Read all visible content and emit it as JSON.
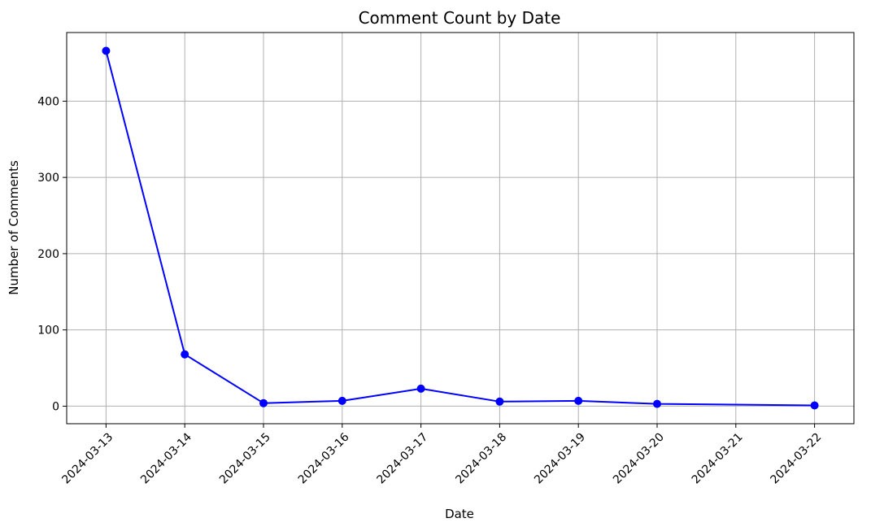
{
  "chart_data": {
    "type": "line",
    "title": "Comment Count by Date",
    "xlabel": "Date",
    "ylabel": "Number of Comments",
    "x_ticks": [
      "2024-03-13",
      "2024-03-14",
      "2024-03-15",
      "2024-03-16",
      "2024-03-17",
      "2024-03-18",
      "2024-03-19",
      "2024-03-20",
      "2024-03-21",
      "2024-03-22"
    ],
    "y_ticks": [
      0,
      100,
      200,
      300,
      400
    ],
    "xlim": [
      "2024-03-12 12:00",
      "2024-03-22 12:00"
    ],
    "ylim": [
      -23,
      490
    ],
    "grid": true,
    "series": [
      {
        "color": "#0000ff",
        "marker": "circle",
        "points": [
          {
            "x": "2024-03-13",
            "y": 466
          },
          {
            "x": "2024-03-14",
            "y": 68
          },
          {
            "x": "2024-03-15",
            "y": 4
          },
          {
            "x": "2024-03-16",
            "y": 7
          },
          {
            "x": "2024-03-17",
            "y": 23
          },
          {
            "x": "2024-03-18",
            "y": 6
          },
          {
            "x": "2024-03-19",
            "y": 7
          },
          {
            "x": "2024-03-20",
            "y": 3
          },
          {
            "x": "2024-03-22",
            "y": 1
          }
        ]
      }
    ]
  }
}
